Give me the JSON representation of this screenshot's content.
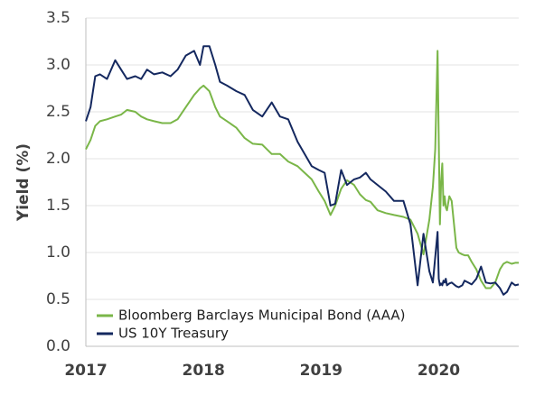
{
  "chart_data": {
    "type": "line",
    "title": "",
    "ylabel": "Yield (%)",
    "xlabel": "",
    "xlim": [
      2017.0,
      2020.68
    ],
    "ylim": [
      0,
      3.5
    ],
    "y_ticks": [
      "0.0",
      "0.5",
      "1.0",
      "1.5",
      "2.0",
      "2.5",
      "3.0",
      "3.5"
    ],
    "x_ticks": [
      {
        "label": "2017",
        "value": 2017
      },
      {
        "label": "2018",
        "value": 2018
      },
      {
        "label": "2019",
        "value": 2019
      },
      {
        "label": "2020",
        "value": 2020
      }
    ],
    "grid": "horizontal",
    "legend_position": "bottom-left",
    "series": [
      {
        "name": "Bloomberg Barclays Municipal Bond (AAA)",
        "color": "#7ab648",
        "x": [
          2017.0,
          2017.04,
          2017.08,
          2017.12,
          2017.18,
          2017.25,
          2017.3,
          2017.35,
          2017.42,
          2017.47,
          2017.52,
          2017.58,
          2017.65,
          2017.72,
          2017.78,
          2017.85,
          2017.92,
          2017.97,
          2018.0,
          2018.05,
          2018.1,
          2018.14,
          2018.2,
          2018.28,
          2018.35,
          2018.42,
          2018.5,
          2018.58,
          2018.65,
          2018.72,
          2018.8,
          2018.86,
          2018.92,
          2018.98,
          2019.03,
          2019.08,
          2019.12,
          2019.17,
          2019.22,
          2019.28,
          2019.33,
          2019.38,
          2019.42,
          2019.48,
          2019.55,
          2019.62,
          2019.7,
          2019.76,
          2019.82,
          2019.87,
          2019.92,
          2019.95,
          2019.97,
          2019.99,
          2020.0,
          2020.01,
          2020.02,
          2020.03,
          2020.04,
          2020.05,
          2020.06,
          2020.07,
          2020.09,
          2020.11,
          2020.13,
          2020.15,
          2020.17,
          2020.2,
          2020.22,
          2020.25,
          2020.28,
          2020.32,
          2020.36,
          2020.4,
          2020.44,
          2020.48,
          2020.52,
          2020.55,
          2020.58,
          2020.62,
          2020.65,
          2020.68
        ],
        "values": [
          2.1,
          2.2,
          2.35,
          2.4,
          2.42,
          2.45,
          2.47,
          2.52,
          2.5,
          2.45,
          2.42,
          2.4,
          2.38,
          2.38,
          2.42,
          2.55,
          2.68,
          2.75,
          2.78,
          2.72,
          2.55,
          2.45,
          2.4,
          2.33,
          2.22,
          2.16,
          2.15,
          2.05,
          2.05,
          1.97,
          1.92,
          1.85,
          1.78,
          1.65,
          1.55,
          1.4,
          1.5,
          1.68,
          1.77,
          1.72,
          1.62,
          1.56,
          1.54,
          1.45,
          1.42,
          1.4,
          1.38,
          1.35,
          1.2,
          0.98,
          1.35,
          1.7,
          2.1,
          3.15,
          2.2,
          1.3,
          1.75,
          1.95,
          1.5,
          1.6,
          1.48,
          1.45,
          1.6,
          1.55,
          1.3,
          1.05,
          1.0,
          0.98,
          0.97,
          0.97,
          0.9,
          0.82,
          0.7,
          0.62,
          0.62,
          0.68,
          0.82,
          0.88,
          0.9,
          0.88,
          0.89,
          0.89
        ]
      },
      {
        "name": "US 10Y Treasury",
        "color": "#14285f",
        "x": [
          2017.0,
          2017.04,
          2017.08,
          2017.12,
          2017.18,
          2017.25,
          2017.3,
          2017.35,
          2017.42,
          2017.47,
          2017.52,
          2017.58,
          2017.65,
          2017.72,
          2017.78,
          2017.85,
          2017.92,
          2017.97,
          2018.0,
          2018.05,
          2018.1,
          2018.14,
          2018.2,
          2018.28,
          2018.35,
          2018.42,
          2018.5,
          2018.58,
          2018.65,
          2018.72,
          2018.8,
          2018.86,
          2018.92,
          2018.98,
          2019.03,
          2019.08,
          2019.12,
          2019.17,
          2019.22,
          2019.28,
          2019.33,
          2019.38,
          2019.42,
          2019.48,
          2019.55,
          2019.62,
          2019.7,
          2019.76,
          2019.82,
          2019.87,
          2019.92,
          2019.95,
          2019.97,
          2019.99,
          2020.0,
          2020.01,
          2020.02,
          2020.03,
          2020.04,
          2020.05,
          2020.06,
          2020.07,
          2020.09,
          2020.11,
          2020.13,
          2020.15,
          2020.17,
          2020.2,
          2020.22,
          2020.25,
          2020.28,
          2020.32,
          2020.36,
          2020.4,
          2020.44,
          2020.48,
          2020.52,
          2020.55,
          2020.58,
          2020.62,
          2020.65,
          2020.68
        ],
        "values": [
          2.4,
          2.55,
          2.88,
          2.9,
          2.85,
          3.05,
          2.95,
          2.85,
          2.88,
          2.85,
          2.95,
          2.9,
          2.92,
          2.88,
          2.95,
          3.1,
          3.15,
          3.0,
          3.2,
          3.2,
          3.0,
          2.82,
          2.78,
          2.72,
          2.68,
          2.52,
          2.45,
          2.6,
          2.45,
          2.42,
          2.18,
          2.05,
          1.92,
          1.88,
          1.85,
          1.5,
          1.52,
          1.88,
          1.72,
          1.78,
          1.8,
          1.85,
          1.78,
          1.72,
          1.65,
          1.55,
          1.55,
          1.3,
          0.65,
          1.2,
          0.8,
          0.68,
          0.95,
          1.22,
          0.72,
          0.65,
          0.67,
          0.65,
          0.7,
          0.68,
          0.72,
          0.65,
          0.67,
          0.68,
          0.66,
          0.64,
          0.63,
          0.65,
          0.7,
          0.68,
          0.66,
          0.72,
          0.85,
          0.68,
          0.67,
          0.68,
          0.62,
          0.55,
          0.58,
          0.68,
          0.65,
          0.66
        ]
      }
    ]
  }
}
